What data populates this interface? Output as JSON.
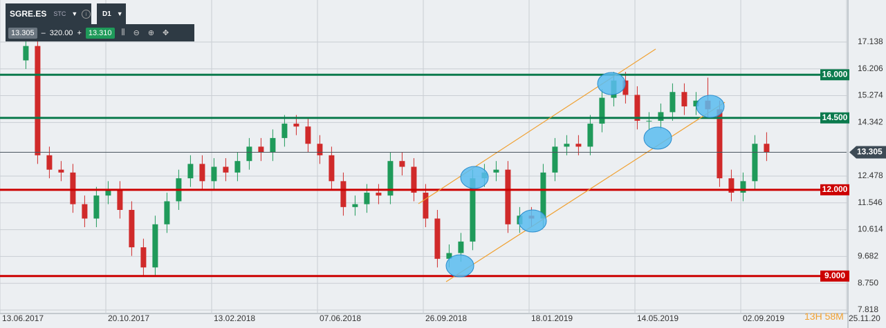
{
  "toolbar": {
    "symbol": "SGRE.ES",
    "symbol_type": "STC",
    "timeframe": "D1",
    "bid": "13.305",
    "volume": "320.00",
    "ask": "13.310"
  },
  "timer": "13H 58M",
  "chart_data": {
    "type": "candlestick",
    "x": [
      22,
      32,
      42,
      52,
      62,
      72,
      82,
      92,
      102,
      112,
      122,
      132,
      142,
      152,
      162,
      172,
      182,
      192,
      202,
      212,
      222,
      232,
      242,
      252,
      262,
      272,
      282,
      292,
      302,
      312,
      322,
      332,
      342,
      352,
      362,
      372,
      382,
      392,
      402,
      412,
      422,
      432,
      442,
      452,
      462,
      472,
      482,
      492,
      502,
      512,
      522,
      532,
      542,
      552,
      562,
      572,
      582,
      592,
      602,
      612,
      622,
      632,
      642,
      652
    ],
    "open": [
      16.5,
      17.0,
      13.2,
      12.7,
      12.6,
      11.5,
      11.0,
      11.8,
      12.0,
      11.3,
      10.0,
      9.3,
      10.8,
      11.6,
      12.4,
      12.9,
      12.3,
      12.8,
      12.6,
      13.0,
      13.5,
      13.3,
      13.8,
      14.3,
      14.2,
      13.6,
      13.2,
      12.3,
      11.4,
      11.5,
      11.9,
      11.8,
      13.0,
      12.8,
      11.9,
      11.0,
      9.6,
      9.8,
      10.2,
      12.4,
      12.6,
      12.7,
      10.8,
      11.1,
      11.0,
      12.6,
      13.5,
      13.6,
      13.5,
      14.3,
      15.2,
      15.8,
      15.3,
      14.4,
      14.4,
      14.7,
      15.4,
      14.9,
      15.1,
      14.8,
      12.4,
      11.9,
      12.3,
      13.6
    ],
    "high": [
      17.6,
      17.3,
      13.5,
      13.0,
      12.9,
      11.8,
      12.1,
      12.3,
      12.3,
      11.6,
      10.3,
      11.1,
      11.9,
      12.7,
      13.2,
      13.2,
      13.1,
      13.1,
      13.3,
      13.8,
      13.8,
      14.1,
      14.6,
      14.6,
      14.5,
      13.9,
      13.5,
      12.6,
      11.8,
      12.2,
      12.2,
      13.3,
      13.3,
      13.1,
      12.2,
      11.3,
      10.1,
      10.5,
      12.7,
      12.9,
      13.0,
      13.0,
      11.4,
      11.4,
      12.9,
      13.8,
      13.9,
      13.9,
      14.6,
      15.5,
      16.1,
      16.1,
      15.6,
      14.7,
      15.0,
      15.7,
      15.7,
      15.4,
      15.9,
      15.1,
      12.7,
      12.6,
      13.9,
      14.0
    ],
    "low": [
      16.2,
      12.9,
      12.4,
      12.3,
      11.2,
      10.7,
      10.7,
      11.5,
      11.0,
      9.7,
      9.0,
      9.0,
      10.5,
      11.3,
      12.1,
      12.0,
      12.0,
      12.3,
      12.3,
      12.7,
      13.0,
      13.0,
      13.5,
      13.9,
      13.3,
      12.9,
      12.0,
      11.1,
      11.1,
      11.2,
      11.5,
      11.5,
      12.5,
      11.6,
      10.7,
      9.3,
      9.3,
      9.5,
      9.9,
      12.1,
      12.3,
      10.5,
      10.5,
      10.7,
      10.7,
      12.3,
      13.2,
      13.2,
      13.2,
      14.0,
      14.9,
      15.0,
      14.1,
      14.1,
      14.1,
      14.4,
      14.6,
      14.6,
      14.5,
      12.1,
      11.6,
      11.6,
      12.0,
      13.0
    ],
    "close": [
      17.0,
      13.2,
      12.7,
      12.6,
      11.5,
      11.0,
      11.8,
      12.0,
      11.3,
      10.0,
      9.3,
      10.8,
      11.6,
      12.4,
      12.9,
      12.3,
      12.8,
      12.6,
      13.0,
      13.5,
      13.3,
      13.8,
      14.3,
      14.2,
      13.6,
      13.2,
      12.3,
      11.4,
      11.5,
      11.9,
      11.8,
      13.0,
      12.8,
      11.9,
      11.0,
      9.6,
      9.8,
      10.2,
      12.4,
      12.6,
      12.7,
      10.8,
      11.1,
      11.0,
      12.6,
      13.5,
      13.6,
      13.5,
      14.3,
      15.2,
      15.8,
      15.3,
      14.4,
      14.4,
      14.7,
      15.4,
      14.9,
      15.1,
      14.8,
      12.4,
      11.9,
      12.3,
      13.6,
      13.3
    ],
    "up_color": "#1f9a5a",
    "down_color": "#d02a2a",
    "xlim": [
      0,
      720
    ],
    "xticks": [
      {
        "value": 0,
        "label": "13.06.2017"
      },
      {
        "value": 90,
        "label": "20.10.2017"
      },
      {
        "value": 180,
        "label": "13.02.2018"
      },
      {
        "value": 270,
        "label": "07.06.2018"
      },
      {
        "value": 360,
        "label": "26.09.2018"
      },
      {
        "value": 450,
        "label": "18.01.2019"
      },
      {
        "value": 540,
        "label": "14.05.2019"
      },
      {
        "value": 630,
        "label": "02.09.2019"
      },
      {
        "value": 720,
        "label": "25.11.20"
      }
    ],
    "ylim": [
      7.746,
      18.6
    ],
    "yticks": [
      17.138,
      16.206,
      15.274,
      14.342,
      12.478,
      11.546,
      10.614,
      9.682,
      {
        "value": 8.75,
        "label": "8.750"
      },
      7.818
    ],
    "grid": true,
    "levels": [
      {
        "value": 16,
        "label": "16.000",
        "color": "#0b7a4d"
      },
      {
        "value": 14.5,
        "label": "14.500",
        "color": "#0b7a4d"
      },
      {
        "value": 12,
        "label": "12.000",
        "color": "#cc0000"
      },
      {
        "value": 9,
        "label": "9.000",
        "color": "#cc0000"
      }
    ],
    "last_price": 13.305,
    "last_price_label": "13.305"
  }
}
